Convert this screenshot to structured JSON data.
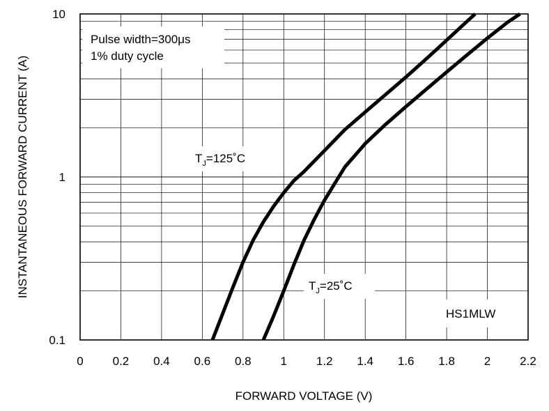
{
  "chart_data": {
    "type": "line",
    "title": "",
    "xlabel": "FORWARD VOLTAGE (V)",
    "ylabel": "INSTANTANEOUS FORWARD CURRENT (A)",
    "xlim": [
      0,
      2.2
    ],
    "ylim": [
      0.1,
      10
    ],
    "yscale": "log",
    "grid": true,
    "x_ticks": [
      "0",
      "0.2",
      "0.4",
      "0.6",
      "0.8",
      "1",
      "1.2",
      "1.4",
      "1.6",
      "1.8",
      "2",
      "2.2"
    ],
    "y_ticks": [
      "0.1",
      "1",
      "10"
    ],
    "series": [
      {
        "name": "TJ=125°C",
        "x": [
          0.65,
          0.7,
          0.75,
          0.8,
          0.85,
          0.9,
          0.95,
          1.0,
          1.05,
          1.1,
          1.2,
          1.3,
          1.4,
          1.5,
          1.6,
          1.7,
          1.8,
          1.9,
          1.94
        ],
        "y": [
          0.1,
          0.145,
          0.21,
          0.3,
          0.41,
          0.53,
          0.66,
          0.8,
          0.95,
          1.08,
          1.45,
          1.95,
          2.5,
          3.2,
          4.1,
          5.3,
          6.9,
          9.0,
          10.0
        ]
      },
      {
        "name": "TJ=25°C",
        "x": [
          0.9,
          0.95,
          1.0,
          1.05,
          1.1,
          1.15,
          1.2,
          1.3,
          1.4,
          1.5,
          1.6,
          1.7,
          1.8,
          1.9,
          2.0,
          2.1,
          2.16
        ],
        "y": [
          0.1,
          0.14,
          0.2,
          0.29,
          0.41,
          0.55,
          0.72,
          1.15,
          1.6,
          2.1,
          2.7,
          3.45,
          4.4,
          5.6,
          7.1,
          8.9,
          10.0
        ]
      }
    ],
    "annotations": {
      "pulse_line1": "Pulse width=300μs",
      "pulse_line2": "1% duty cycle",
      "tj125_prefix": "T",
      "tj125_sub": "J",
      "tj125_suffix": "=125˚C",
      "tj25_prefix": "T",
      "tj25_sub": "J",
      "tj25_suffix": "=25˚C",
      "part": "HS1MLW"
    }
  }
}
